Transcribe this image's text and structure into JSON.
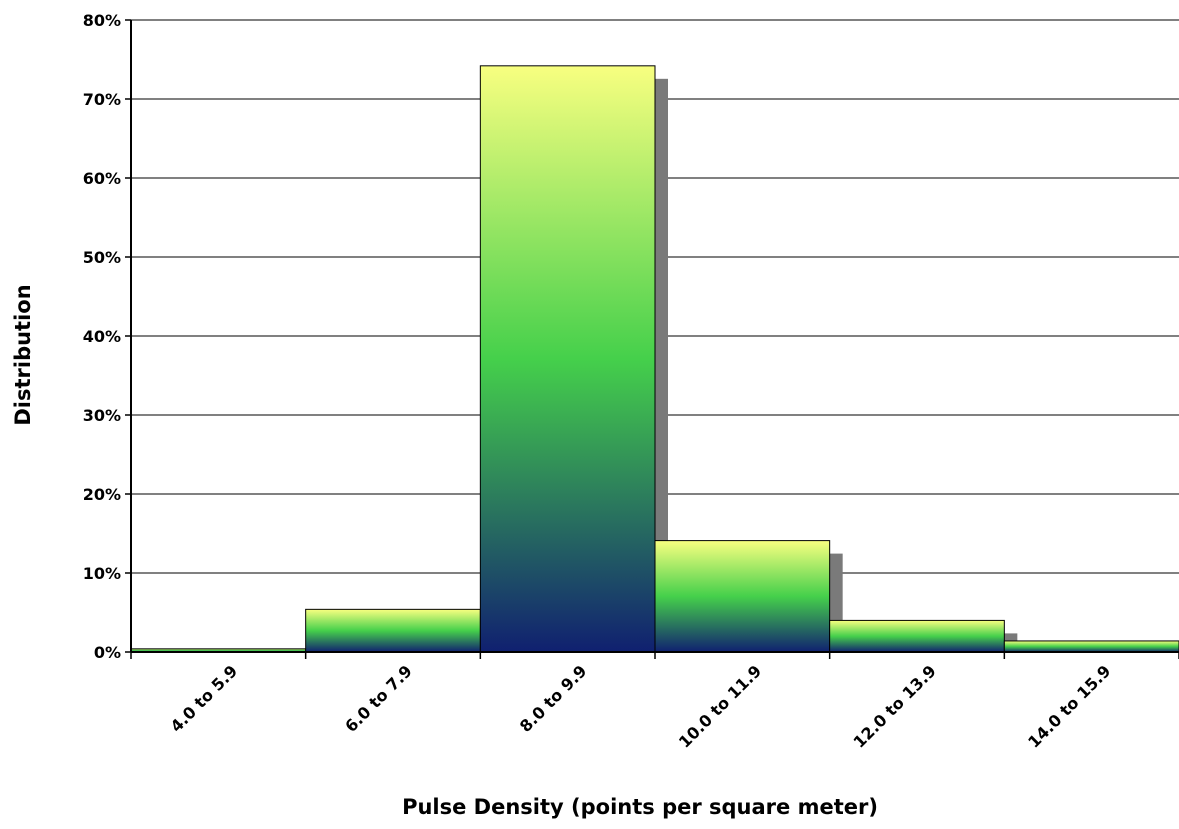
{
  "chart_data": {
    "type": "bar",
    "title": "",
    "xlabel": "Pulse Density (points per square meter)",
    "ylabel": "Distribution",
    "categories": [
      "4.0 to 5.9",
      "6.0 to 7.9",
      "8.0 to 9.9",
      "10.0 to 11.9",
      "12.0 to 13.9",
      "14.0 to 15.9"
    ],
    "values": [
      0.4,
      5.4,
      74.2,
      14.1,
      4.0,
      1.4
    ],
    "ylim": [
      0,
      80
    ],
    "yticks": [
      0,
      10,
      20,
      30,
      40,
      50,
      60,
      70,
      80
    ],
    "ytick_labels": [
      "0%",
      "10%",
      "20%",
      "30%",
      "40%",
      "50%",
      "60%",
      "70%",
      "80%"
    ],
    "grid": true,
    "legend": "none",
    "colors": {
      "bar_top": "#f8ff80",
      "bar_mid": "#45d04b",
      "bar_dark": "#102070",
      "shadow": "#7a7a7a",
      "grid": "#000000"
    }
  }
}
